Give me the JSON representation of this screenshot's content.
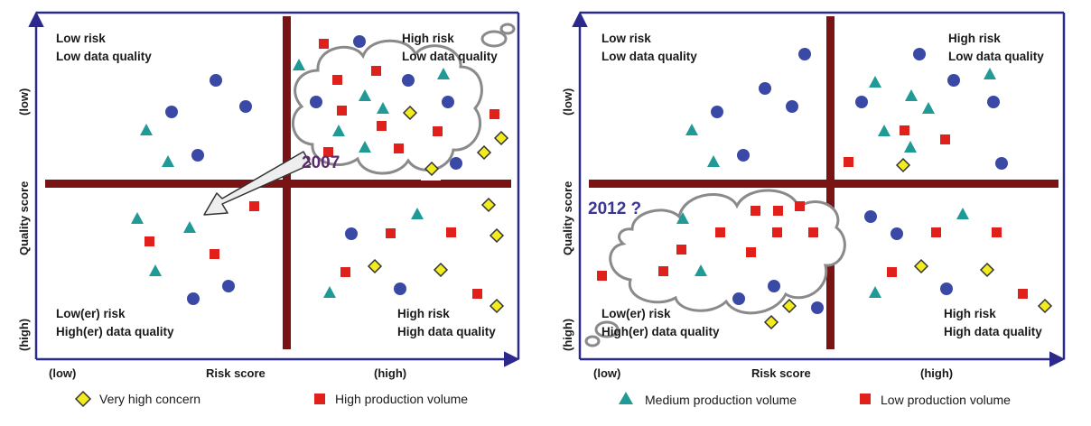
{
  "colors": {
    "axis": "#2b2a8c",
    "divider": "#7a1414",
    "circle": "#3a49a6",
    "triangle": "#1f9a96",
    "square": "#e0201b",
    "diamond": "#f2ec1f",
    "cloud_stroke": "#8a8a8a",
    "year_left": "#5b2d6e",
    "year_right": "#3a3690",
    "arrow_fill": "#eeeeee"
  },
  "legend": [
    {
      "marker": "diamond",
      "label": "Very high concern"
    },
    {
      "marker": "square",
      "label": "High production volume"
    },
    {
      "marker": "triangle",
      "label": "Medium production volume"
    },
    {
      "marker": "square",
      "label": "Low production volume"
    }
  ],
  "panels": [
    {
      "id": "left",
      "year_label": "2007",
      "quadrants": {
        "top_left": [
          "Low risk",
          "Low data quality"
        ],
        "top_right": [
          "High risk",
          "Low data quality"
        ],
        "bottom_left": [
          "Low(er) risk",
          "High(er) data quality"
        ],
        "bottom_right": [
          "High risk",
          "High data quality"
        ]
      },
      "x_axis": {
        "low": "(low)",
        "title": "Risk score",
        "high": "(high)"
      },
      "y_axis": {
        "low": "(low)",
        "title": "Quality score",
        "high": "(high)"
      }
    },
    {
      "id": "right",
      "year_label": "2012 ?",
      "quadrants": {
        "top_left": [
          "Low risk",
          "Low data quality"
        ],
        "top_right": [
          "High risk",
          "Low data quality"
        ],
        "bottom_left": [
          "Low(er) risk",
          "High(er) data quality"
        ],
        "bottom_right": [
          "High risk",
          "High data quality"
        ]
      },
      "x_axis": {
        "low": "(low)",
        "title": "Risk score",
        "high": "(high)"
      },
      "y_axis": {
        "low": "(low)",
        "title": "Quality score",
        "high": "(high)"
      }
    }
  ]
}
